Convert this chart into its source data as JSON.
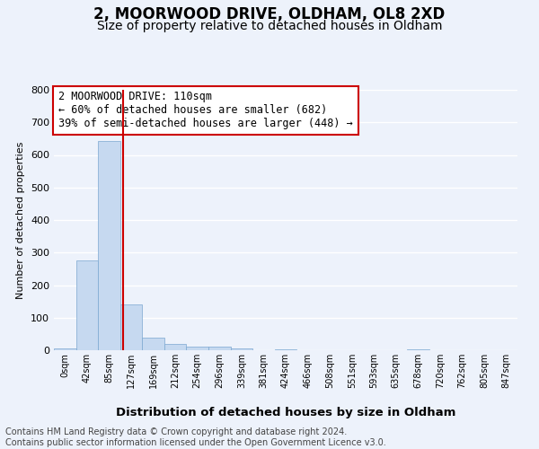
{
  "title": "2, MOORWOOD DRIVE, OLDHAM, OL8 2XD",
  "subtitle": "Size of property relative to detached houses in Oldham",
  "xlabel": "Distribution of detached houses by size in Oldham",
  "ylabel": "Number of detached properties",
  "bin_labels": [
    "0sqm",
    "42sqm",
    "85sqm",
    "127sqm",
    "169sqm",
    "212sqm",
    "254sqm",
    "296sqm",
    "339sqm",
    "381sqm",
    "424sqm",
    "466sqm",
    "508sqm",
    "551sqm",
    "593sqm",
    "635sqm",
    "678sqm",
    "720sqm",
    "762sqm",
    "805sqm",
    "847sqm"
  ],
  "bar_values": [
    6,
    275,
    643,
    140,
    38,
    20,
    12,
    10,
    5,
    0,
    4,
    0,
    0,
    0,
    0,
    0,
    3,
    0,
    0,
    0,
    0
  ],
  "bar_color": "#c6d9f0",
  "bar_edge_color": "#7ba7d0",
  "vline_x": 2.62,
  "vline_color": "#cc0000",
  "annotation_text": "2 MOORWOOD DRIVE: 110sqm\n← 60% of detached houses are smaller (682)\n39% of semi-detached houses are larger (448) →",
  "annotation_box_color": "#ffffff",
  "annotation_box_edge": "#cc0000",
  "ylim": [
    0,
    800
  ],
  "yticks": [
    0,
    100,
    200,
    300,
    400,
    500,
    600,
    700,
    800
  ],
  "footer_line1": "Contains HM Land Registry data © Crown copyright and database right 2024.",
  "footer_line2": "Contains public sector information licensed under the Open Government Licence v3.0.",
  "background_color": "#edf2fb",
  "grid_color": "#ffffff",
  "title_fontsize": 12,
  "subtitle_fontsize": 10,
  "annotation_fontsize": 8.5,
  "footer_fontsize": 7,
  "ylabel_fontsize": 8,
  "xlabel_fontsize": 9.5
}
